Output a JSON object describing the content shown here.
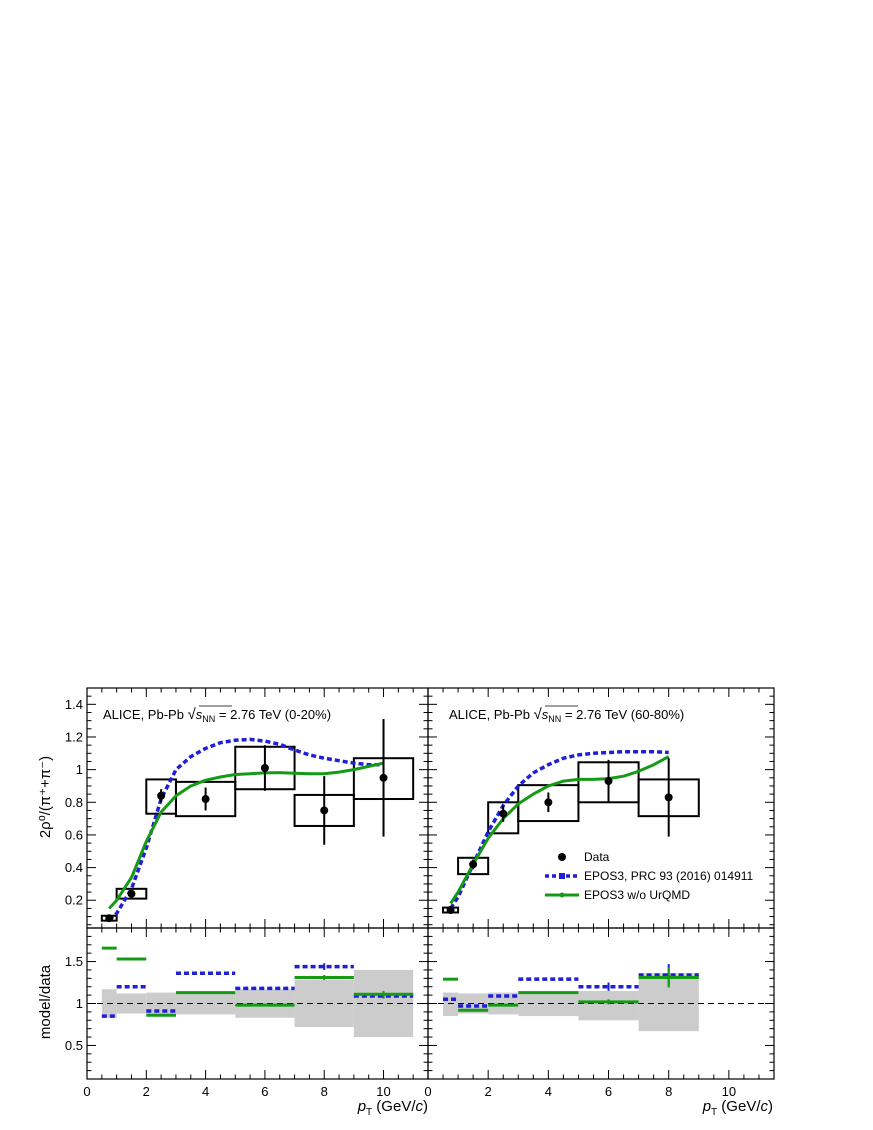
{
  "chart_data": [
    {
      "panel": "top-left",
      "type": "scatter",
      "annotation_prefix": "ALICE, Pb-Pb ",
      "annotation_sqrt": "s",
      "annotation_sub": "NN",
      "annotation_suffix": " = 2.76 TeV (0-20%)",
      "ylabel": "2ρ⁰/(π⁺+π⁻)",
      "xlim": [
        0,
        11.5
      ],
      "ylim": [
        0.03,
        1.5
      ],
      "yticks": [
        "0.2",
        "0.4",
        "0.6",
        "0.8",
        "1",
        "1.2",
        "1.4"
      ],
      "data": {
        "x": [
          0.75,
          1.5,
          2.5,
          4.0,
          6.0,
          8.0,
          10.0
        ],
        "y": [
          0.09,
          0.24,
          0.84,
          0.82,
          1.01,
          0.75,
          0.95
        ],
        "stat": [
          0.01,
          0.02,
          0.04,
          0.07,
          0.14,
          0.21,
          0.36
        ],
        "syst_box": [
          {
            "x1": 0.5,
            "x2": 1.0,
            "y1": 0.075,
            "y2": 0.105
          },
          {
            "x1": 1.0,
            "x2": 2.0,
            "y1": 0.21,
            "y2": 0.27
          },
          {
            "x1": 2.0,
            "x2": 3.0,
            "y1": 0.73,
            "y2": 0.94
          },
          {
            "x1": 3.0,
            "x2": 5.0,
            "y1": 0.715,
            "y2": 0.925
          },
          {
            "x1": 5.0,
            "x2": 7.0,
            "y1": 0.88,
            "y2": 1.14
          },
          {
            "x1": 7.0,
            "x2": 9.0,
            "y1": 0.655,
            "y2": 0.845
          },
          {
            "x1": 9.0,
            "x2": 11.0,
            "y1": 0.82,
            "y2": 1.07
          }
        ]
      },
      "epos3_curve": {
        "x": [
          0.75,
          1.0,
          1.5,
          2.0,
          2.5,
          3.0,
          3.5,
          4.0,
          4.5,
          5.0,
          5.5,
          6.0,
          6.5,
          7.0,
          7.5,
          8.0,
          8.5,
          9.0,
          9.5,
          10.0
        ],
        "y": [
          0.08,
          0.12,
          0.27,
          0.52,
          0.82,
          1.0,
          1.08,
          1.13,
          1.165,
          1.18,
          1.185,
          1.175,
          1.155,
          1.12,
          1.09,
          1.07,
          1.055,
          1.04,
          1.03,
          1.03
        ]
      },
      "epos3_nourqmd_curve": {
        "x": [
          0.75,
          1.0,
          1.5,
          2.0,
          2.5,
          3.0,
          3.5,
          4.0,
          4.5,
          5.0,
          5.5,
          6.0,
          6.5,
          7.0,
          7.5,
          8.0,
          8.5,
          9.0,
          9.5,
          10.0
        ],
        "y": [
          0.15,
          0.2,
          0.34,
          0.56,
          0.74,
          0.84,
          0.9,
          0.935,
          0.955,
          0.97,
          0.975,
          0.98,
          0.982,
          0.978,
          0.975,
          0.975,
          0.985,
          1.0,
          1.02,
          1.04
        ]
      }
    },
    {
      "panel": "top-right",
      "type": "scatter",
      "annotation_prefix": "ALICE, Pb-Pb ",
      "annotation_sqrt": "s",
      "annotation_sub": "NN",
      "annotation_suffix": " = 2.76 TeV (60-80%)",
      "xlim": [
        0,
        11.5
      ],
      "ylim": [
        0.03,
        1.5
      ],
      "data": {
        "x": [
          0.75,
          1.5,
          2.5,
          4.0,
          6.0,
          8.0
        ],
        "y": [
          0.14,
          0.42,
          0.73,
          0.8,
          0.93,
          0.83
        ],
        "stat": [
          0.01,
          0.03,
          0.05,
          0.06,
          0.13,
          0.24
        ],
        "syst_box": [
          {
            "x1": 0.5,
            "x2": 1.0,
            "y1": 0.125,
            "y2": 0.155
          },
          {
            "x1": 1.0,
            "x2": 2.0,
            "y1": 0.36,
            "y2": 0.46
          },
          {
            "x1": 2.0,
            "x2": 3.0,
            "y1": 0.61,
            "y2": 0.8
          },
          {
            "x1": 3.0,
            "x2": 5.0,
            "y1": 0.685,
            "y2": 0.905
          },
          {
            "x1": 5.0,
            "x2": 7.0,
            "y1": 0.8,
            "y2": 1.045
          },
          {
            "x1": 7.0,
            "x2": 9.0,
            "y1": 0.715,
            "y2": 0.94
          }
        ]
      },
      "epos3_curve": {
        "x": [
          0.75,
          1.0,
          1.5,
          2.0,
          2.5,
          3.0,
          3.5,
          4.0,
          4.5,
          5.0,
          5.5,
          6.0,
          6.5,
          7.0,
          7.5,
          8.0
        ],
        "y": [
          0.15,
          0.22,
          0.42,
          0.62,
          0.78,
          0.9,
          0.98,
          1.03,
          1.07,
          1.09,
          1.1,
          1.105,
          1.11,
          1.11,
          1.11,
          1.105
        ]
      },
      "epos3_nourqmd_curve": {
        "x": [
          0.75,
          1.0,
          1.5,
          2.0,
          2.5,
          3.0,
          3.5,
          4.0,
          4.5,
          5.0,
          5.5,
          6.0,
          6.5,
          7.0,
          7.5,
          8.0
        ],
        "y": [
          0.18,
          0.25,
          0.42,
          0.58,
          0.7,
          0.79,
          0.85,
          0.9,
          0.93,
          0.94,
          0.94,
          0.945,
          0.96,
          0.99,
          1.03,
          1.08
        ]
      },
      "legend": {
        "placement": "center-right",
        "entries": [
          "Data",
          "EPOS3, PRC 93 (2016) 014911",
          "EPOS3 w/o UrQMD"
        ]
      }
    },
    {
      "panel": "bottom-left",
      "type": "bar",
      "ylabel": "model/data",
      "xlabel_prefix": "p",
      "xlabel_sub": "T",
      "xlabel_suffix": " (GeV/",
      "xlabel_italic": "c",
      "xlabel_close": ")",
      "xlim": [
        0,
        11.5
      ],
      "ylim": [
        0.1,
        1.9
      ],
      "yticks": [
        "0.5",
        "1",
        "1.5"
      ],
      "xticks": [
        "0",
        "2",
        "4",
        "6",
        "8",
        "10"
      ],
      "reference_line": 1,
      "uncertainty_band": [
        {
          "x1": 0.5,
          "x2": 1.0,
          "y1": 0.83,
          "y2": 1.17
        },
        {
          "x1": 1.0,
          "x2": 2.0,
          "y1": 0.88,
          "y2": 1.12
        },
        {
          "x1": 2.0,
          "x2": 3.0,
          "y1": 0.87,
          "y2": 1.13
        },
        {
          "x1": 3.0,
          "x2": 5.0,
          "y1": 0.87,
          "y2": 1.13
        },
        {
          "x1": 5.0,
          "x2": 7.0,
          "y1": 0.83,
          "y2": 1.17
        },
        {
          "x1": 7.0,
          "x2": 9.0,
          "y1": 0.72,
          "y2": 1.28
        },
        {
          "x1": 9.0,
          "x2": 11.0,
          "y1": 0.6,
          "y2": 1.4
        }
      ],
      "epos3_ratio": {
        "bins": [
          [
            0.5,
            1.0
          ],
          [
            1.0,
            2.0
          ],
          [
            2.0,
            3.0
          ],
          [
            3.0,
            5.0
          ],
          [
            5.0,
            7.0
          ],
          [
            7.0,
            9.0
          ],
          [
            9.0,
            11.0
          ]
        ],
        "values": [
          0.85,
          1.2,
          0.91,
          1.36,
          1.18,
          1.44,
          1.09
        ],
        "errors": [
          0.0,
          0.0,
          0.0,
          0.0,
          0.0,
          0.04,
          0.03
        ]
      },
      "epos3_nourqmd_ratio": {
        "bins": [
          [
            0.5,
            1.0
          ],
          [
            1.0,
            2.0
          ],
          [
            2.0,
            3.0
          ],
          [
            3.0,
            5.0
          ],
          [
            5.0,
            7.0
          ],
          [
            7.0,
            9.0
          ],
          [
            9.0,
            11.0
          ]
        ],
        "values": [
          1.66,
          1.53,
          0.86,
          1.13,
          0.98,
          1.31,
          1.11
        ],
        "errors": [
          0.0,
          0.0,
          0.0,
          0.0,
          0.0,
          0.03,
          0.04
        ]
      }
    },
    {
      "panel": "bottom-right",
      "type": "bar",
      "xlabel_prefix": "p",
      "xlabel_sub": "T",
      "xlabel_suffix": " (GeV/",
      "xlabel_italic": "c",
      "xlabel_close": ")",
      "xlim": [
        0,
        11.5
      ],
      "ylim": [
        0.1,
        1.9
      ],
      "xticks": [
        "0",
        "2",
        "4",
        "6",
        "8",
        "10"
      ],
      "reference_line": 1,
      "uncertainty_band": [
        {
          "x1": 0.5,
          "x2": 1.0,
          "y1": 0.85,
          "y2": 1.13
        },
        {
          "x1": 1.0,
          "x2": 2.0,
          "y1": 0.88,
          "y2": 1.12
        },
        {
          "x1": 2.0,
          "x2": 3.0,
          "y1": 0.87,
          "y2": 1.13
        },
        {
          "x1": 3.0,
          "x2": 5.0,
          "y1": 0.85,
          "y2": 1.14
        },
        {
          "x1": 5.0,
          "x2": 7.0,
          "y1": 0.8,
          "y2": 1.15
        },
        {
          "x1": 7.0,
          "x2": 9.0,
          "y1": 0.67,
          "y2": 1.36
        }
      ],
      "epos3_ratio": {
        "bins": [
          [
            0.5,
            1.0
          ],
          [
            1.0,
            2.0
          ],
          [
            2.0,
            3.0
          ],
          [
            3.0,
            5.0
          ],
          [
            5.0,
            7.0
          ],
          [
            7.0,
            9.0
          ]
        ],
        "values": [
          1.05,
          0.97,
          1.09,
          1.29,
          1.2,
          1.34
        ],
        "errors": [
          0.0,
          0.0,
          0.0,
          0.0,
          0.05,
          0.13
        ]
      },
      "epos3_nourqmd_ratio": {
        "bins": [
          [
            0.5,
            1.0
          ],
          [
            1.0,
            2.0
          ],
          [
            2.0,
            3.0
          ],
          [
            3.0,
            5.0
          ],
          [
            5.0,
            7.0
          ],
          [
            7.0,
            9.0
          ]
        ],
        "values": [
          1.29,
          0.92,
          0.98,
          1.13,
          1.02,
          1.31
        ],
        "errors": [
          0.0,
          0.0,
          0.0,
          0.0,
          0.03,
          0.12
        ]
      }
    }
  ],
  "colors": {
    "data": "#000000",
    "epos3": "#1f1fd6",
    "epos3_nourqmd": "#159a15",
    "band": "#cccccc"
  }
}
